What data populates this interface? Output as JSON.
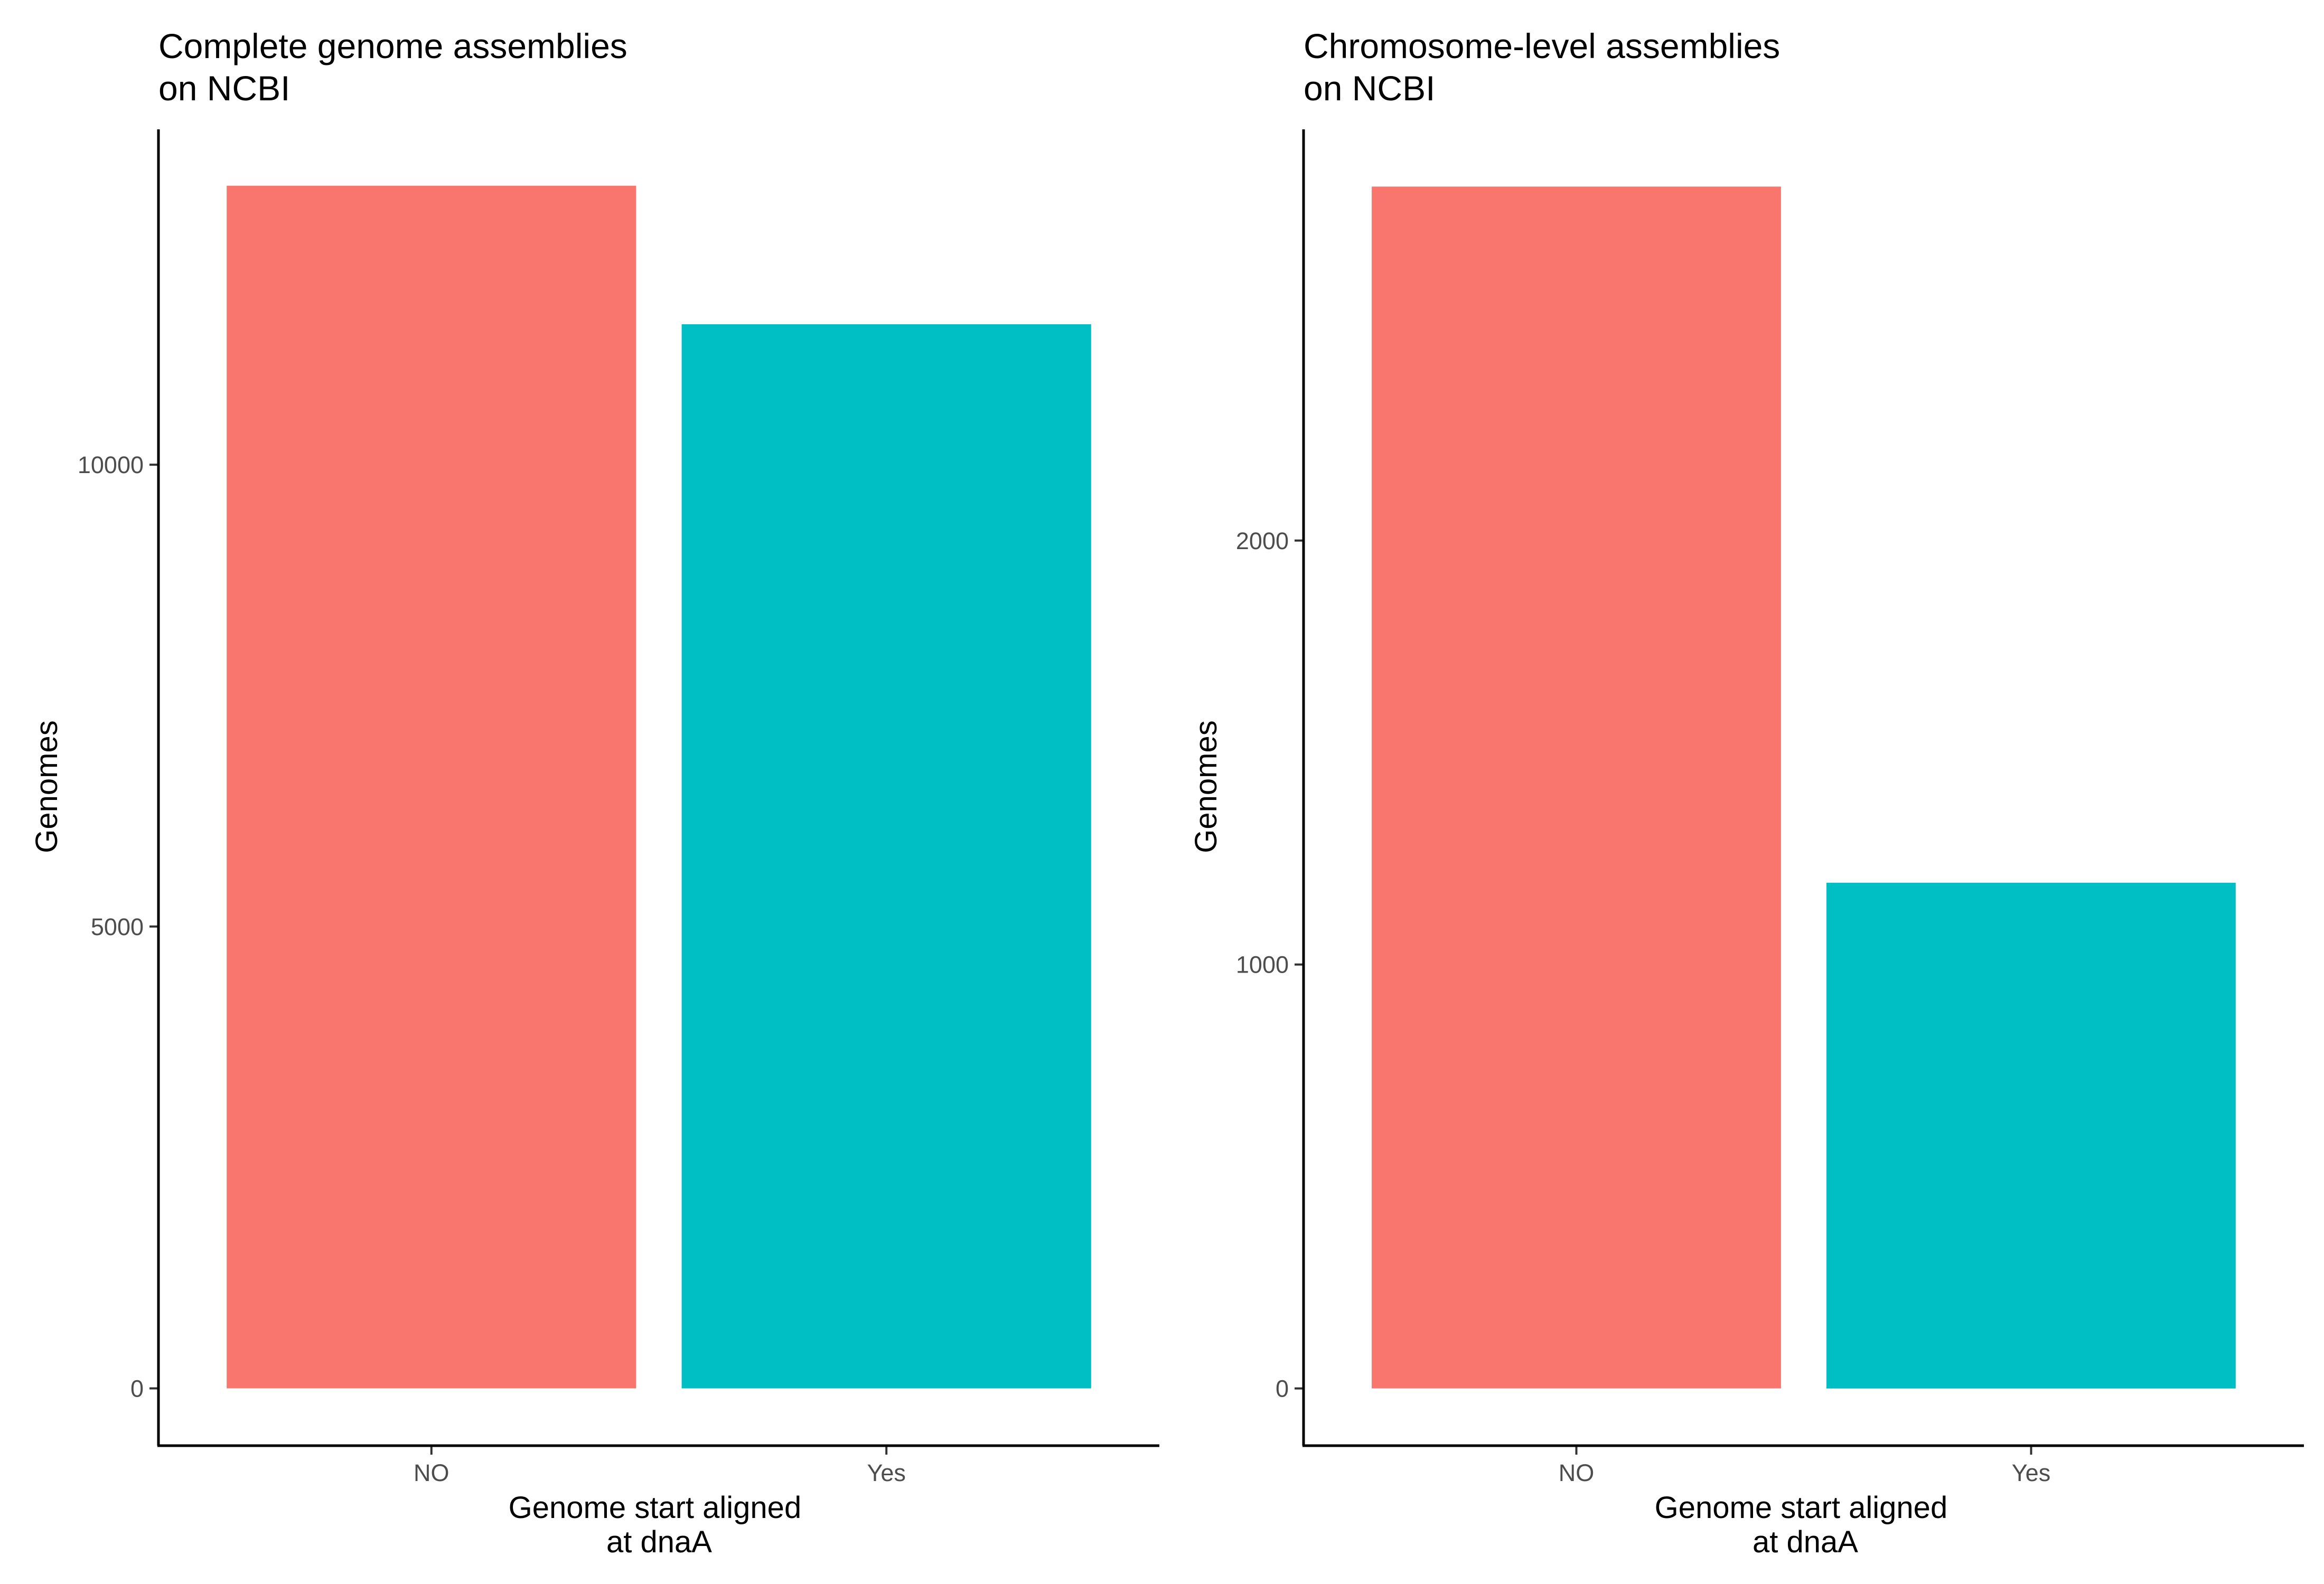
{
  "chart_data": [
    {
      "type": "bar",
      "title": [
        "Complete genome assemblies",
        "on NCBI"
      ],
      "xlabel": [
        "Genome start aligned",
        "at dnaA"
      ],
      "ylabel": "Genomes",
      "categories": [
        "NO",
        "Yes"
      ],
      "values": [
        13020,
        11520
      ],
      "colors": [
        "#F8766D",
        "#00BFC4"
      ],
      "yticks": [
        0,
        5000,
        10000
      ],
      "ylim": [
        -620,
        13630
      ],
      "grid": false,
      "legend": "none"
    },
    {
      "type": "bar",
      "title": [
        "Chromosome-level assemblies",
        "on NCBI"
      ],
      "xlabel": [
        "Genome start aligned",
        "at dnaA"
      ],
      "ylabel": "Genomes",
      "categories": [
        "NO",
        "Yes"
      ],
      "values": [
        2835,
        1193
      ],
      "colors": [
        "#F8766D",
        "#00BFC4"
      ],
      "yticks": [
        0,
        1000,
        2000
      ],
      "ylim": [
        -135,
        2970
      ],
      "grid": false,
      "legend": "none"
    }
  ]
}
